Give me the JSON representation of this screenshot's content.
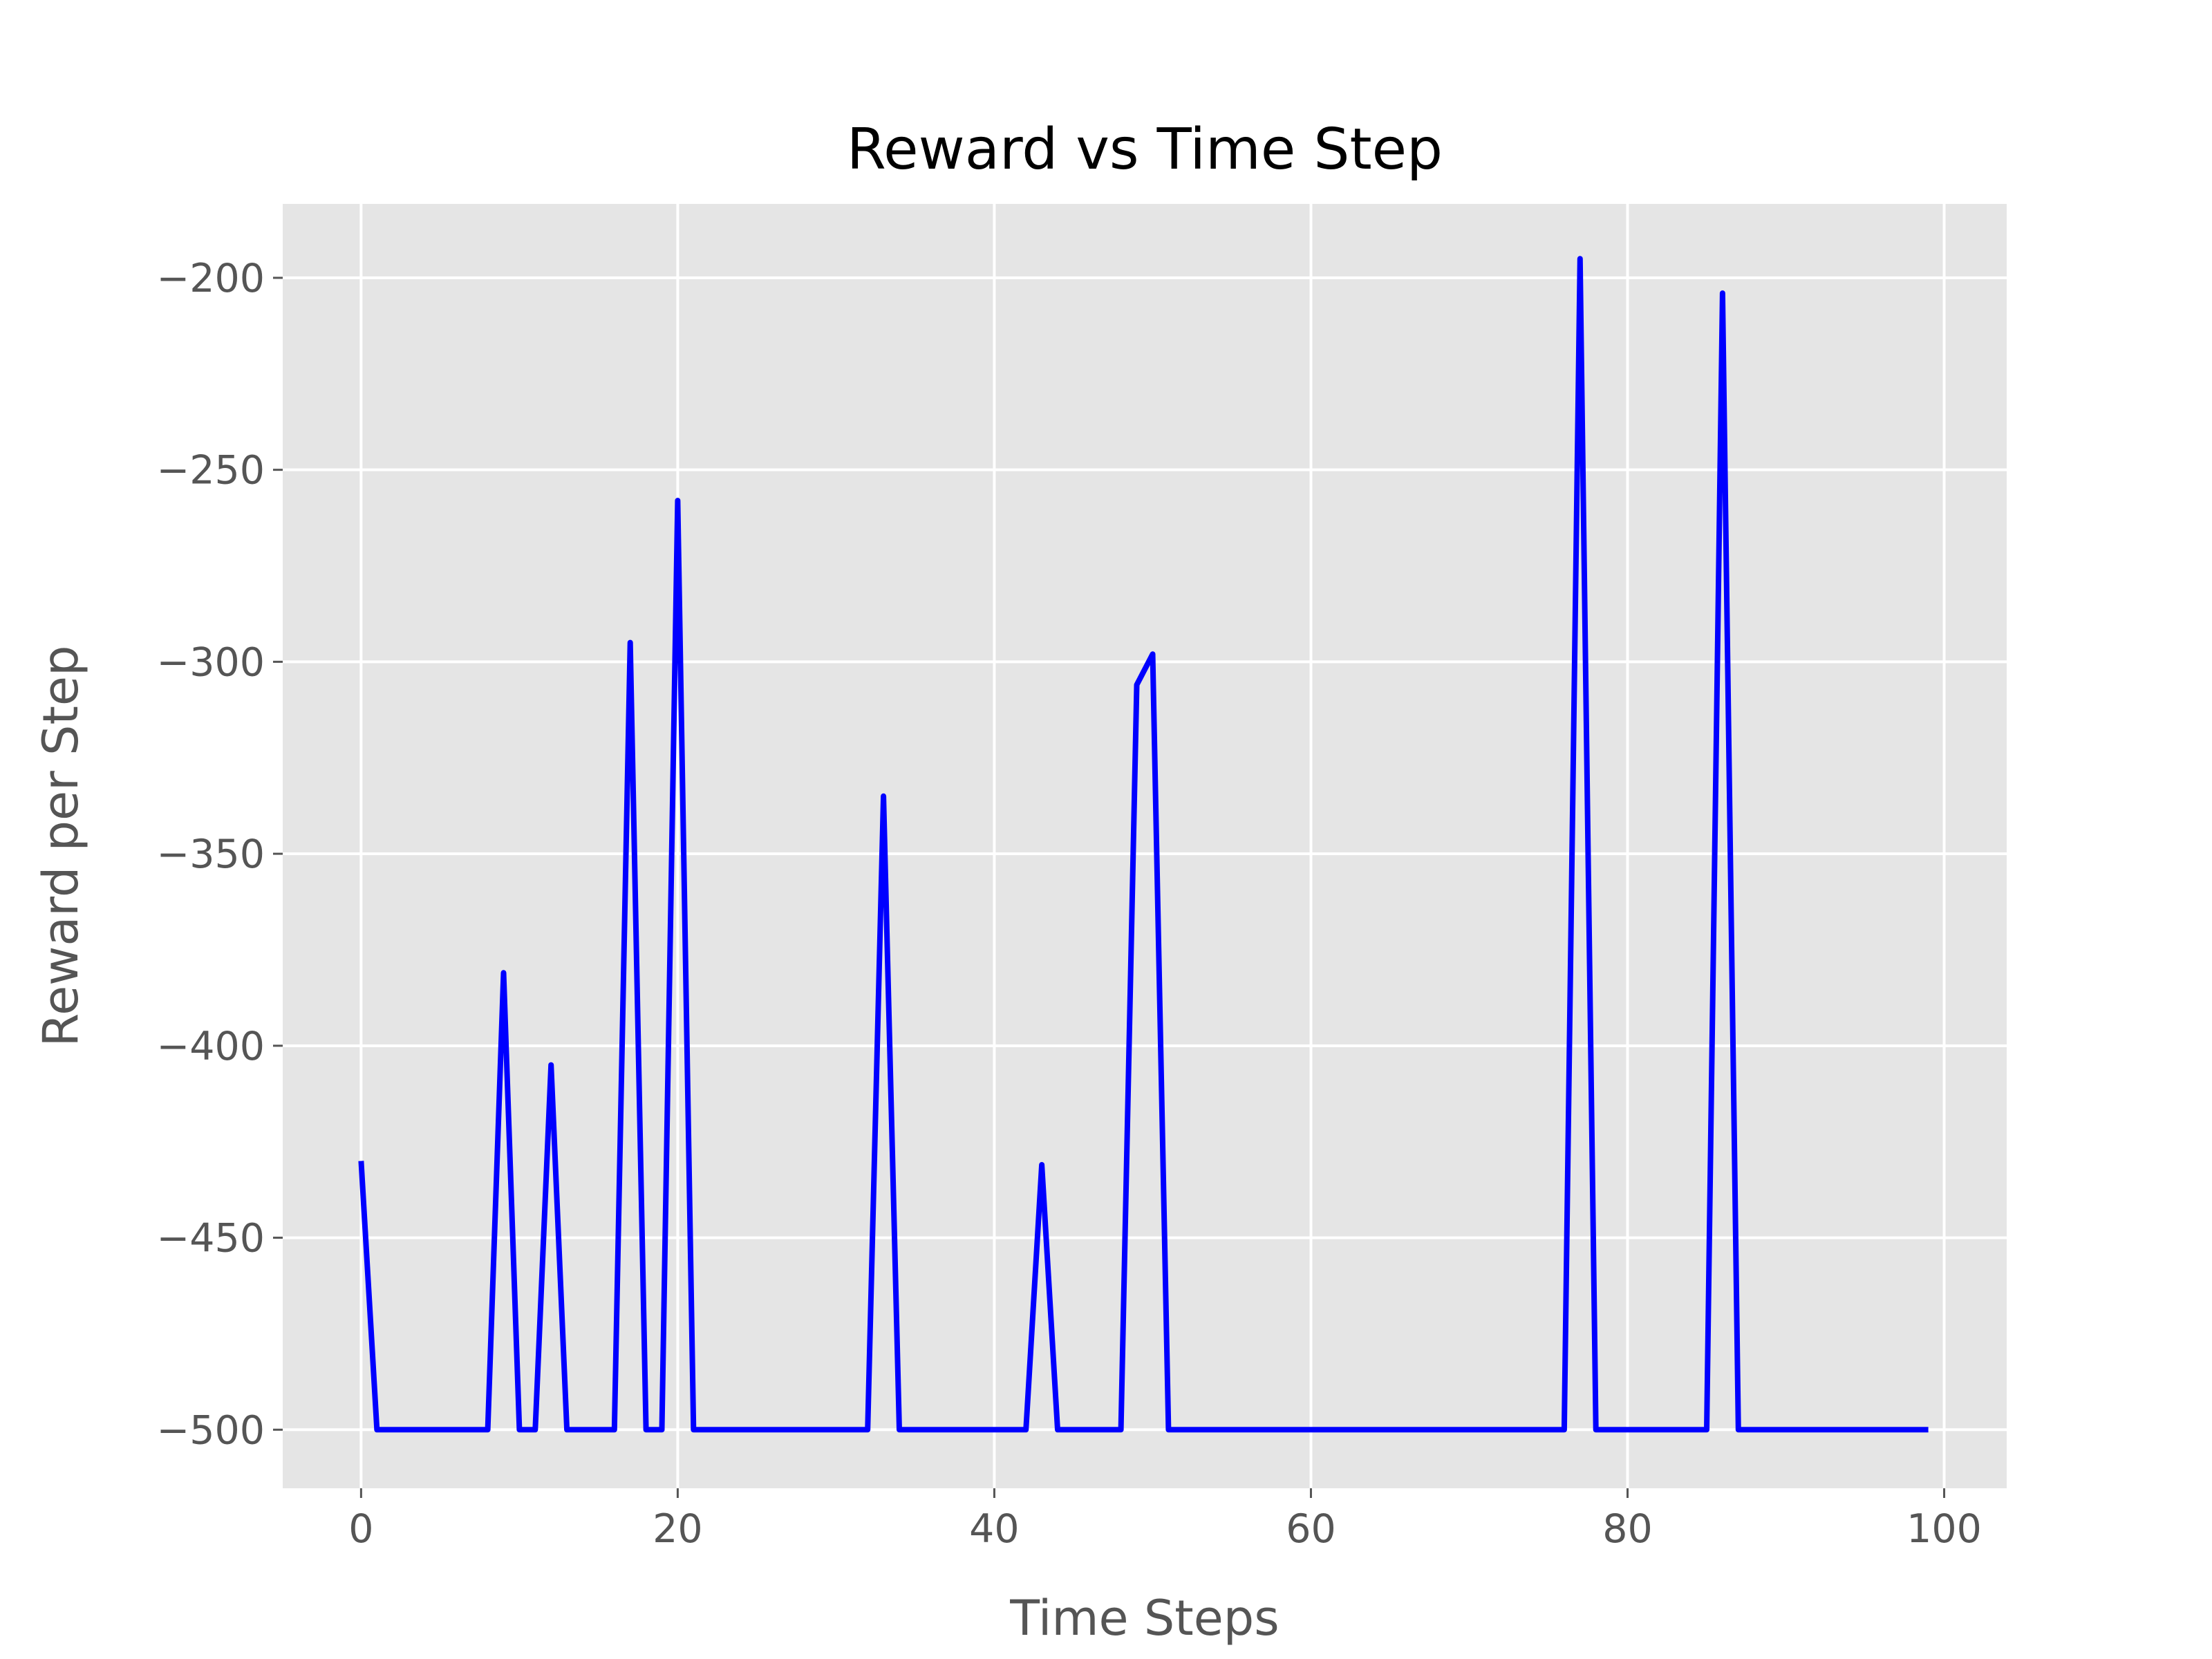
{
  "chart_data": {
    "type": "line",
    "title": "Reward vs Time Step",
    "xlabel": "Time Steps",
    "ylabel": "Reward per Step",
    "xlim": [
      -4.95,
      103.95
    ],
    "ylim": [
      -515.25,
      -180.75
    ],
    "xticks": [
      0,
      20,
      40,
      60,
      80,
      100
    ],
    "yticks": [
      -500,
      -450,
      -400,
      -350,
      -300,
      -250,
      -200
    ],
    "grid": true,
    "legend": "none",
    "colors": {
      "background": "#e5e5e5",
      "grid": "#ffffff",
      "line": "#0000ff"
    },
    "series": [
      {
        "x": [
          0,
          1,
          2,
          3,
          4,
          5,
          6,
          7,
          8,
          9,
          10,
          11,
          12,
          13,
          14,
          15,
          16,
          17,
          18,
          19,
          20,
          21,
          22,
          23,
          24,
          25,
          26,
          27,
          28,
          29,
          30,
          31,
          32,
          33,
          34,
          35,
          36,
          37,
          38,
          39,
          40,
          41,
          42,
          43,
          44,
          45,
          46,
          47,
          48,
          49,
          50,
          51,
          52,
          53,
          54,
          55,
          56,
          57,
          58,
          59,
          60,
          61,
          62,
          63,
          64,
          65,
          66,
          67,
          68,
          69,
          70,
          71,
          72,
          73,
          74,
          75,
          76,
          77,
          78,
          79,
          80,
          81,
          82,
          83,
          84,
          85,
          86,
          87,
          88,
          89,
          90,
          91,
          92,
          93,
          94,
          95,
          96,
          97,
          98,
          99
        ],
        "values": [
          -430,
          -500,
          -500,
          -500,
          -500,
          -500,
          -500,
          -500,
          -500,
          -381,
          -500,
          -500,
          -405,
          -500,
          -500,
          -500,
          -500,
          -295,
          -500,
          -500,
          -258,
          -500,
          -500,
          -500,
          -500,
          -500,
          -500,
          -500,
          -500,
          -500,
          -500,
          -500,
          -500,
          -335,
          -500,
          -500,
          -500,
          -500,
          -500,
          -500,
          -500,
          -500,
          -500,
          -431,
          -500,
          -500,
          -500,
          -500,
          -500,
          -306,
          -298,
          -500,
          -500,
          -500,
          -500,
          -500,
          -500,
          -500,
          -500,
          -500,
          -500,
          -500,
          -500,
          -500,
          -500,
          -500,
          -500,
          -500,
          -500,
          -500,
          -500,
          -500,
          -500,
          -500,
          -500,
          -500,
          -500,
          -195,
          -500,
          -500,
          -500,
          -500,
          -500,
          -500,
          -500,
          -500,
          -204,
          -500,
          -500,
          -500,
          -500,
          -500,
          -500,
          -500,
          -500,
          -500,
          -500,
          -500,
          -500,
          -500
        ]
      }
    ]
  }
}
